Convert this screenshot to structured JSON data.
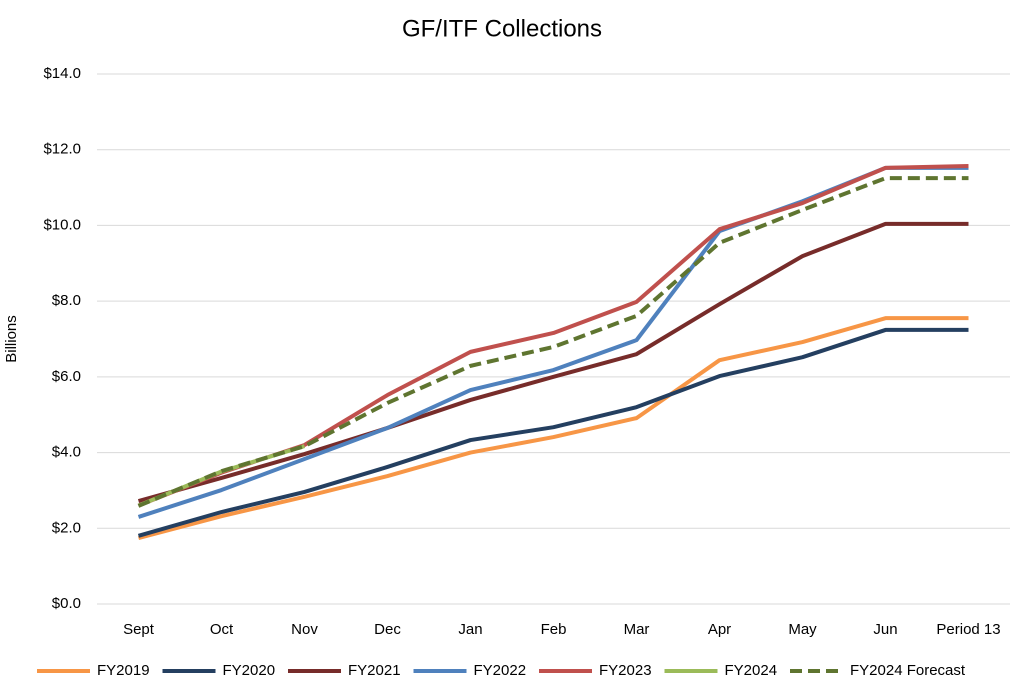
{
  "chart_data": {
    "type": "line",
    "title": "GF/ITF Collections",
    "y_label": "Billions",
    "categories": [
      "Sept",
      "Oct",
      "Nov",
      "Dec",
      "Jan",
      "Feb",
      "Mar",
      "Apr",
      "May",
      "Jun",
      "Period 13"
    ],
    "ylim": [
      0,
      14
    ],
    "yticks": [
      {
        "value": 0,
        "label": "$0.0"
      },
      {
        "value": 2,
        "label": "$2.0"
      },
      {
        "value": 4,
        "label": "$4.0"
      },
      {
        "value": 6,
        "label": "$6.0"
      },
      {
        "value": 8,
        "label": "$8.0"
      },
      {
        "value": 10,
        "label": "$10.0"
      },
      {
        "value": 12,
        "label": "$12.0"
      },
      {
        "value": 14,
        "label": "$14.0"
      }
    ],
    "grid": true,
    "legend": "bottom",
    "series": [
      {
        "name": "FY2019",
        "color": "#f79646",
        "values": [
          1.74,
          2.32,
          2.83,
          3.38,
          4.0,
          4.41,
          4.91,
          6.44,
          6.92,
          7.55,
          7.55
        ]
      },
      {
        "name": "FY2020",
        "color": "#243f60",
        "values": [
          1.8,
          2.43,
          2.96,
          3.62,
          4.33,
          4.67,
          5.2,
          6.02,
          6.52,
          7.24,
          7.24
        ]
      },
      {
        "name": "FY2021",
        "color": "#772c2a",
        "values": [
          2.72,
          3.33,
          3.96,
          4.65,
          5.39,
          6.0,
          6.6,
          7.92,
          9.19,
          10.04,
          10.04
        ]
      },
      {
        "name": "FY2022",
        "color": "#4f81bd",
        "values": [
          2.3,
          3.01,
          3.83,
          4.65,
          5.65,
          6.18,
          6.97,
          9.85,
          10.64,
          11.52,
          11.52
        ]
      },
      {
        "name": "FY2023",
        "color": "#c0504d",
        "values": [
          2.6,
          3.47,
          4.2,
          5.52,
          6.66,
          7.16,
          7.98,
          9.9,
          10.59,
          11.52,
          11.57
        ]
      },
      {
        "name": "FY2024",
        "color": "#9bbb59",
        "values": [
          2.6,
          3.5,
          4.17,
          null,
          null,
          null,
          null,
          null,
          null,
          null,
          null
        ]
      },
      {
        "name": "FY2024 Forecast",
        "color": "#5f7530",
        "dashed": true,
        "values": [
          2.59,
          3.51,
          4.17,
          5.31,
          6.29,
          6.79,
          7.61,
          9.54,
          10.41,
          11.25,
          11.25
        ]
      }
    ]
  }
}
